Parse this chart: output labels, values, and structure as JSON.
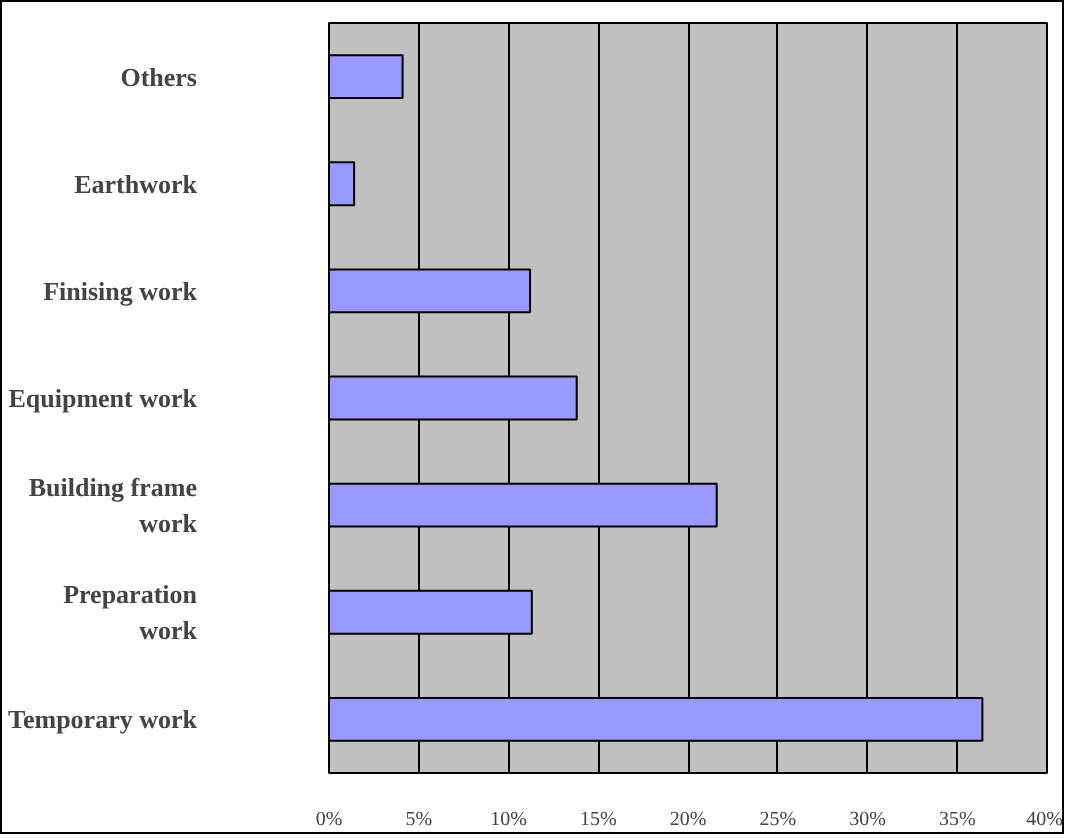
{
  "chart_data": {
    "type": "bar",
    "orientation": "horizontal",
    "categories": [
      "Others",
      "Earthwork",
      "Finising work",
      "Equipment work",
      "Building frame work",
      "Preparation work",
      "Temporary work"
    ],
    "values": [
      4.1,
      1.4,
      11.2,
      13.8,
      21.6,
      11.3,
      36.4
    ],
    "color": "#9999ff",
    "xlim": [
      0,
      40
    ],
    "xticks": [
      {
        "value": 0,
        "label": "0%"
      },
      {
        "value": 5,
        "label": "5%"
      },
      {
        "value": 10,
        "label": "10%"
      },
      {
        "value": 15,
        "label": "15%"
      },
      {
        "value": 20,
        "label": "20%"
      },
      {
        "value": 25,
        "label": "25%"
      },
      {
        "value": 30,
        "label": "30%"
      },
      {
        "value": 35,
        "label": "35%"
      },
      {
        "value": 40,
        "label": "40%"
      }
    ],
    "grid": "x"
  }
}
